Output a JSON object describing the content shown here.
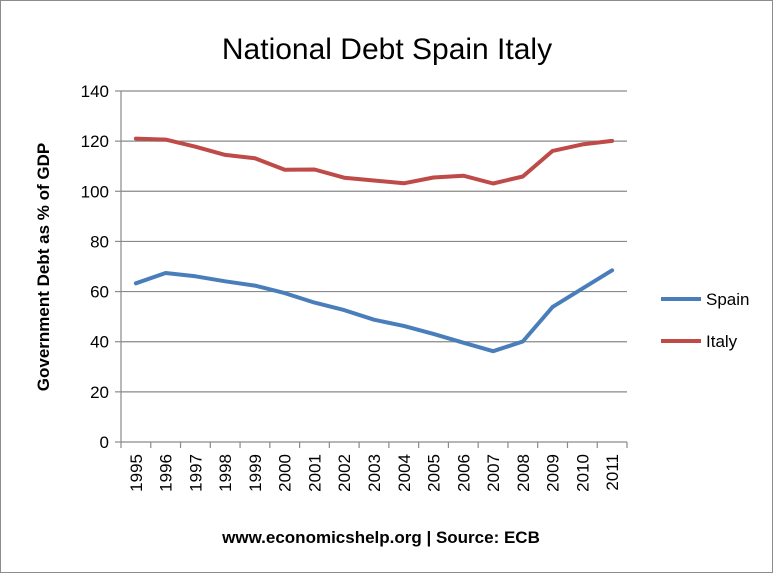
{
  "chart_data": {
    "type": "line",
    "title": "National Debt Spain Italy",
    "xlabel": "www.economicshelp.org | Source: ECB",
    "ylabel": "Government Debt as % of GDP",
    "ylim": [
      0,
      140
    ],
    "y_ticks": [
      0,
      20,
      40,
      60,
      80,
      100,
      120,
      140
    ],
    "grid": "horizontal",
    "legend_position": "right",
    "categories": [
      "1995",
      "1996",
      "1997",
      "1998",
      "1999",
      "2000",
      "2001",
      "2002",
      "2003",
      "2004",
      "2005",
      "2006",
      "2007",
      "2008",
      "2009",
      "2010",
      "2011"
    ],
    "series": [
      {
        "name": "Spain",
        "color": "#4a7ebb",
        "values": [
          63.3,
          67.4,
          66.1,
          64.1,
          62.4,
          59.4,
          55.6,
          52.6,
          48.8,
          46.3,
          43.1,
          39.6,
          36.2,
          40.1,
          53.9,
          61.2,
          68.5
        ]
      },
      {
        "name": "Italy",
        "color": "#be4b48",
        "values": [
          121.0,
          120.6,
          117.8,
          114.5,
          113.2,
          108.6,
          108.7,
          105.4,
          104.3,
          103.2,
          105.5,
          106.2,
          103.1,
          105.9,
          116.1,
          118.7,
          120.1
        ]
      }
    ]
  }
}
